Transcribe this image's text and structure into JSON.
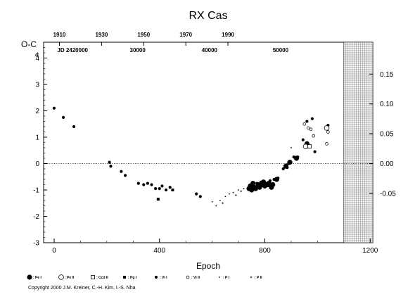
{
  "chart_data": {
    "type": "scatter",
    "title": "RX Cas",
    "xlabel": "Epoch",
    "ylabel": "O-C",
    "left_unit": "d",
    "xlim": [
      -40,
      1210
    ],
    "ylim_left": [
      -3.0,
      4.6
    ],
    "ylim_right": [
      -0.1327,
      0.2035
    ],
    "x_ticks": [
      "0",
      "400",
      "800",
      "1200"
    ],
    "x_tick_values": [
      0,
      400,
      800,
      1200
    ],
    "left_ticks": [
      "-3",
      "-2",
      "-1",
      "0",
      "1",
      "2",
      "3",
      "4"
    ],
    "left_tick_values": [
      -3,
      -2,
      -1,
      0,
      1,
      2,
      3,
      4
    ],
    "right_ticks": [
      "-0.05",
      "0.00",
      "0.05",
      "0.10",
      "0.15"
    ],
    "right_tick_values": [
      -0.05,
      0.0,
      0.05,
      0.1,
      0.15
    ],
    "top_year_ticks": [
      "1910",
      "1930",
      "1950",
      "1970",
      "1990"
    ],
    "top_year_epochs": [
      20,
      180,
      340,
      500,
      660
    ],
    "jd_ticks": [
      "JD 2420000",
      "30000",
      "40000",
      "50000"
    ],
    "jd_epochs": [
      70,
      317,
      590,
      860
    ],
    "future_region_start": 1100,
    "grid": false,
    "zero_line": true,
    "legend_position": "bottom",
    "legend": [
      {
        "symbol": "pe-i",
        "label": ": Pe I"
      },
      {
        "symbol": "pe-ii",
        "label": ": Pe II"
      },
      {
        "symbol": "ccd-ii",
        "label": ": Ccd II"
      },
      {
        "symbol": "pg-i",
        "label": ": Pg I"
      },
      {
        "symbol": "vi-i",
        "label": ": Vi I"
      },
      {
        "symbol": "vi-ii",
        "label": ": Vi II"
      },
      {
        "symbol": "p-i",
        "label": ": P I"
      },
      {
        "symbol": "p-ii",
        "label": ": P II"
      }
    ],
    "series": [
      {
        "symbol": "vi-i",
        "points": [
          [
            0,
            2.1
          ],
          [
            35,
            1.75
          ],
          [
            75,
            1.4
          ],
          [
            210,
            0.05
          ],
          [
            215,
            -0.1
          ],
          [
            255,
            -0.3
          ],
          [
            270,
            -0.45
          ],
          [
            320,
            -0.75
          ],
          [
            340,
            -0.8
          ],
          [
            355,
            -0.75
          ],
          [
            370,
            -0.8
          ],
          [
            385,
            -0.95
          ],
          [
            400,
            -0.95
          ],
          [
            410,
            -0.85
          ],
          [
            425,
            -1.0
          ],
          [
            440,
            -0.9
          ],
          [
            540,
            -1.15
          ],
          [
            555,
            -1.25
          ],
          [
            770,
            -0.75
          ],
          [
            785,
            -0.7
          ],
          [
            805,
            -0.75
          ],
          [
            820,
            -0.65
          ],
          [
            835,
            -0.6
          ],
          [
            850,
            -0.55
          ],
          [
            870,
            -0.2
          ],
          [
            885,
            -0.15
          ],
          [
            890,
            0.0
          ],
          [
            910,
            0.25
          ],
          [
            925,
            0.25
          ],
          [
            945,
            0.9
          ],
          [
            960,
            1.6
          ],
          [
            980,
            1.7
          ],
          [
            990,
            0.45
          ],
          [
            1040,
            1.45
          ]
        ]
      },
      {
        "symbol": "pe-i",
        "points": [
          [
            740,
            -0.95
          ],
          [
            745,
            -0.85
          ],
          [
            750,
            -1.0
          ],
          [
            755,
            -0.75
          ],
          [
            760,
            -0.9
          ],
          [
            765,
            -0.95
          ],
          [
            775,
            -0.8
          ],
          [
            780,
            -0.9
          ],
          [
            790,
            -0.8
          ],
          [
            795,
            -0.7
          ],
          [
            800,
            -0.85
          ],
          [
            810,
            -0.8
          ],
          [
            815,
            -0.75
          ],
          [
            825,
            -0.9
          ],
          [
            830,
            -0.8
          ],
          [
            845,
            -0.6
          ],
          [
            880,
            -0.1
          ],
          [
            895,
            0.05
          ],
          [
            920,
            0.2
          ],
          [
            960,
            0.75
          ]
        ]
      },
      {
        "symbol": "pe-ii",
        "points": [
          [
            955,
            0.65
          ],
          [
            1035,
            1.35
          ]
        ]
      },
      {
        "symbol": "vi-ii",
        "points": [
          [
            950,
            1.5
          ],
          [
            965,
            1.35
          ],
          [
            975,
            1.3
          ],
          [
            985,
            1.05
          ],
          [
            1035,
            0.75
          ],
          [
            1040,
            1.2
          ]
        ]
      },
      {
        "symbol": "ccd-ii",
        "points": [
          [
            970,
            0.65
          ]
        ]
      },
      {
        "symbol": "pg-i",
        "points": [
          [
            395,
            -1.35
          ],
          [
            450,
            -1.0
          ]
        ]
      },
      {
        "symbol": "p-i",
        "points": [
          [
            600,
            -1.45
          ],
          [
            615,
            -1.6
          ],
          [
            630,
            -1.4
          ],
          [
            650,
            -1.25
          ],
          [
            665,
            -1.15
          ],
          [
            680,
            -1.1
          ],
          [
            700,
            -1.0
          ],
          [
            720,
            -0.95
          ],
          [
            900,
            0.6
          ]
        ]
      },
      {
        "symbol": "p-ii",
        "points": [
          [
            640,
            -1.5
          ],
          [
            690,
            -1.2
          ],
          [
            710,
            -1.05
          ]
        ]
      }
    ]
  },
  "credit": "Copyright 2000 J.M. Kreiner, C.-H. Kim, I.-S. Nha"
}
